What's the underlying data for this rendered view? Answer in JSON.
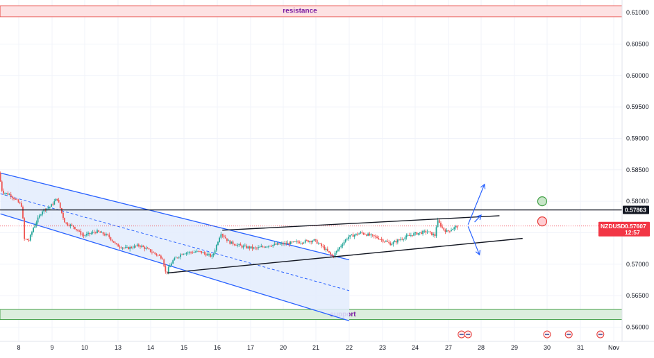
{
  "colors": {
    "up": "#26a69a",
    "down": "#ef5350",
    "channel": "#2962ff",
    "channel_fill": "#e3ecfd",
    "resistance_fill": "#fde2e3",
    "resistance_border": "#e53935",
    "support_fill": "#dceedd",
    "support_border": "#43a047",
    "price_tag": "#f23645",
    "level_tag": "#131722",
    "zone_text": "#7b1fa2"
  },
  "chart_data": {
    "type": "candlestick",
    "symbol": "NZDUSD",
    "ylim": [
      0.5595,
      0.612
    ],
    "y_ticks": [
      "0.56000",
      "0.56500",
      "0.57000",
      "0.57500",
      "0.58000",
      "0.58500",
      "0.59000",
      "0.59500",
      "0.60000",
      "0.60500",
      "0.61000"
    ],
    "x_ticks": [
      {
        "label": "8",
        "pos": 0
      },
      {
        "label": "9",
        "pos": 1
      },
      {
        "label": "10",
        "pos": 2
      },
      {
        "label": "13",
        "pos": 3
      },
      {
        "label": "14",
        "pos": 4
      },
      {
        "label": "15",
        "pos": 5
      },
      {
        "label": "16",
        "pos": 6
      },
      {
        "label": "17",
        "pos": 7
      },
      {
        "label": "20",
        "pos": 8
      },
      {
        "label": "21",
        "pos": 9
      },
      {
        "label": "22",
        "pos": 10
      },
      {
        "label": "23",
        "pos": 11
      },
      {
        "label": "24",
        "pos": 12
      },
      {
        "label": "27",
        "pos": 13
      },
      {
        "label": "28",
        "pos": 14
      },
      {
        "label": "29",
        "pos": 15
      },
      {
        "label": "30",
        "pos": 16
      },
      {
        "label": "31",
        "pos": 17
      },
      {
        "label": "Nov",
        "pos": 18
      }
    ],
    "price_path": [
      [
        -0.55,
        0.5845
      ],
      [
        -0.45,
        0.5815
      ],
      [
        -0.2,
        0.581
      ],
      [
        0.15,
        0.5792
      ],
      [
        0.2,
        0.574
      ],
      [
        0.35,
        0.5738
      ],
      [
        0.5,
        0.576
      ],
      [
        0.75,
        0.5785
      ],
      [
        1.0,
        0.5792
      ],
      [
        1.2,
        0.5805
      ],
      [
        1.35,
        0.578
      ],
      [
        1.45,
        0.5765
      ],
      [
        1.7,
        0.576
      ],
      [
        2.0,
        0.5745
      ],
      [
        2.4,
        0.5752
      ],
      [
        2.75,
        0.5745
      ],
      [
        3.0,
        0.573
      ],
      [
        3.3,
        0.5725
      ],
      [
        3.7,
        0.573
      ],
      [
        4.0,
        0.5722
      ],
      [
        4.4,
        0.571
      ],
      [
        4.5,
        0.5685
      ],
      [
        4.7,
        0.5705
      ],
      [
        5.0,
        0.5718
      ],
      [
        5.5,
        0.572
      ],
      [
        5.9,
        0.5712
      ],
      [
        6.15,
        0.575
      ],
      [
        6.4,
        0.5735
      ],
      [
        6.8,
        0.5728
      ],
      [
        7.2,
        0.5725
      ],
      [
        7.6,
        0.573
      ],
      [
        8.0,
        0.5732
      ],
      [
        8.5,
        0.5735
      ],
      [
        9.0,
        0.5738
      ],
      [
        9.3,
        0.5725
      ],
      [
        9.55,
        0.5712
      ],
      [
        9.8,
        0.573
      ],
      [
        10.0,
        0.5743
      ],
      [
        10.4,
        0.575
      ],
      [
        10.9,
        0.5742
      ],
      [
        11.3,
        0.5732
      ],
      [
        11.6,
        0.574
      ],
      [
        12.0,
        0.5748
      ],
      [
        12.4,
        0.5752
      ],
      [
        12.65,
        0.5745
      ],
      [
        12.7,
        0.577
      ],
      [
        12.9,
        0.5755
      ],
      [
        13.0,
        0.5752
      ],
      [
        13.3,
        0.576
      ]
    ],
    "current_price": "0.57607",
    "countdown": "12:57",
    "level_price": "0.57863",
    "level_value": 0.57863,
    "resistance": {
      "label": "resistance",
      "low": 0.61,
      "high": 0.6115
    },
    "support": {
      "label": "support",
      "low": 0.5612,
      "high": 0.5628
    },
    "channel": {
      "upper": [
        [
          -0.55,
          0.5845
        ],
        [
          10.0,
          0.5707
        ]
      ],
      "lower": [
        [
          -0.55,
          0.578
        ],
        [
          10.0,
          0.561
        ]
      ],
      "median": [
        [
          -0.55,
          0.5812
        ],
        [
          10.0,
          0.5658
        ]
      ]
    },
    "wedge": {
      "upper": [
        [
          6.15,
          0.5754
        ],
        [
          14.55,
          0.5777
        ]
      ],
      "lower": [
        [
          4.5,
          0.5686
        ],
        [
          15.25,
          0.5741
        ]
      ]
    },
    "arrows": [
      {
        "from": [
          13.6,
          0.5763
        ],
        "to": [
          14.1,
          0.5827
        ]
      },
      {
        "from": [
          13.8,
          0.5767
        ],
        "to": [
          14.0,
          0.5778
        ]
      },
      {
        "from": [
          13.6,
          0.576
        ],
        "to": [
          13.95,
          0.5715
        ]
      }
    ],
    "markers": [
      {
        "x": 15.85,
        "y": 0.58,
        "color": "#43a047",
        "fill": "#c8e6c9"
      },
      {
        "x": 15.85,
        "y": 0.5768,
        "color": "#e53935",
        "fill": "#ffcdd2"
      }
    ],
    "event_icons": [
      13.4,
      13.6,
      16.0,
      16.65,
      17.6
    ]
  }
}
